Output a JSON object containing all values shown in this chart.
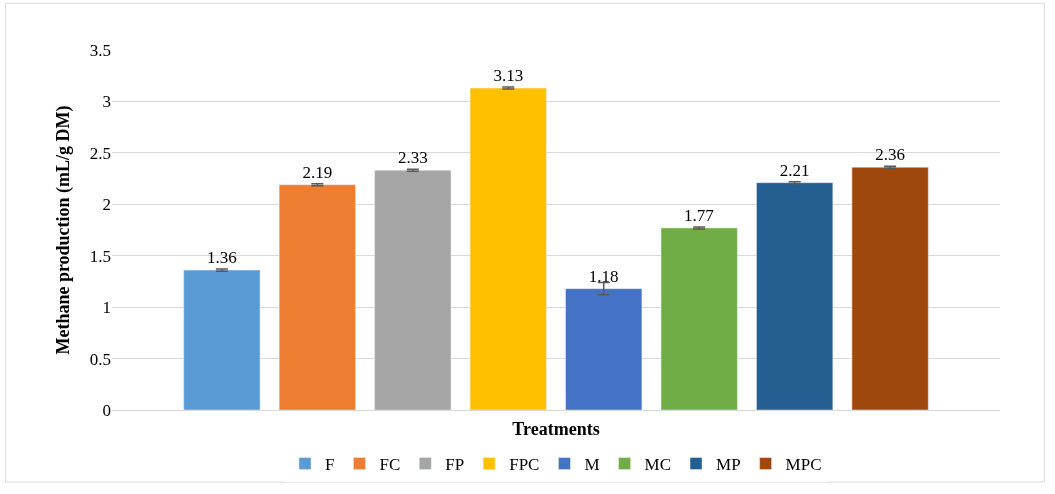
{
  "chart_data": {
    "type": "bar",
    "xlabel": "Treatments",
    "ylabel": "Methane production (mL/g DM)",
    "categories": [
      null
    ],
    "series": [
      {
        "name": "F",
        "color": "#5b9bd5",
        "values": [
          1.36
        ],
        "errors": [
          0.01
        ]
      },
      {
        "name": "FC",
        "color": "#ed7d31",
        "values": [
          2.19
        ],
        "errors": [
          0.01
        ]
      },
      {
        "name": "FP",
        "color": "#a5a5a5",
        "values": [
          2.33
        ],
        "errors": [
          0.01
        ]
      },
      {
        "name": "FPC",
        "color": "#ffc000",
        "values": [
          3.13
        ],
        "errors": [
          0.01
        ]
      },
      {
        "name": "M",
        "color": "#4472c4",
        "values": [
          1.18
        ],
        "errors": [
          0.06
        ]
      },
      {
        "name": "MC",
        "color": "#70ad47",
        "values": [
          1.77
        ],
        "errors": [
          0.01
        ]
      },
      {
        "name": "MP",
        "color": "#255e91",
        "values": [
          2.21
        ],
        "errors": [
          0.01
        ]
      },
      {
        "name": "MPC",
        "color": "#9e480e",
        "values": [
          2.36
        ],
        "errors": [
          0.01
        ]
      }
    ],
    "ylim": [
      0,
      3.5
    ],
    "yticks": [
      0,
      0.5,
      1,
      1.5,
      2,
      2.5,
      3,
      3.5
    ],
    "grid": "y",
    "legend": "bottom",
    "data_labels": true,
    "tick_labels": "y"
  }
}
